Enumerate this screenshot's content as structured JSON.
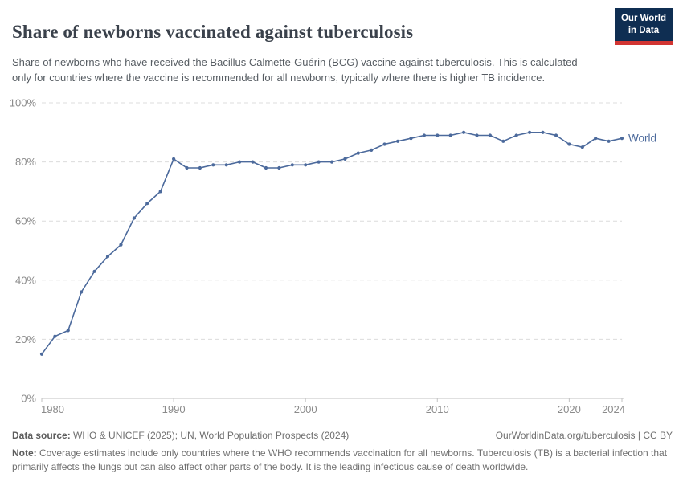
{
  "header": {
    "title": "Share of newborns vaccinated against tuberculosis",
    "subtitle": "Share of newborns who have received the Bacillus Calmette-Guérin (BCG) vaccine against tuberculosis. This is calculated only for countries where the vaccine is recommended for all newborns, typically where there is higher TB incidence.",
    "logo": {
      "line1": "Our World",
      "line2": "in Data"
    }
  },
  "colors": {
    "line": "#4c6a9c",
    "logo_bg": "#0f2e52",
    "logo_stripe": "#d23532",
    "grid": "#dcdcdc",
    "axis": "#c2c2c2",
    "tick_label": "#8b8b8b"
  },
  "chart_data": {
    "type": "line",
    "title": "Share of newborns vaccinated against tuberculosis",
    "xlabel": "",
    "ylabel": "",
    "xlim": [
      1980,
      2024
    ],
    "ylim": [
      0,
      100
    ],
    "xticks": [
      1980,
      1990,
      2000,
      2010,
      2020,
      2024
    ],
    "yticks": [
      0,
      20,
      40,
      60,
      80,
      100
    ],
    "ytick_suffix": "%",
    "grid": "horizontal-dashed",
    "legend": "end-of-line-label",
    "x": [
      1980,
      1981,
      1982,
      1983,
      1984,
      1985,
      1986,
      1987,
      1988,
      1989,
      1990,
      1991,
      1992,
      1993,
      1994,
      1995,
      1996,
      1997,
      1998,
      1999,
      2000,
      2001,
      2002,
      2003,
      2004,
      2005,
      2006,
      2007,
      2008,
      2009,
      2010,
      2011,
      2012,
      2013,
      2014,
      2015,
      2016,
      2017,
      2018,
      2019,
      2020,
      2021,
      2022,
      2023,
      2024
    ],
    "series": [
      {
        "name": "World",
        "color": "#4c6a9c",
        "values": [
          15,
          21,
          23,
          36,
          43,
          48,
          52,
          61,
          66,
          70,
          81,
          78,
          78,
          79,
          79,
          80,
          80,
          78,
          78,
          79,
          79,
          80,
          80,
          81,
          83,
          84,
          86,
          87,
          88,
          89,
          89,
          89,
          90,
          89,
          89,
          87,
          89,
          90,
          90,
          89,
          86,
          85,
          88,
          87,
          88
        ]
      }
    ]
  },
  "footer": {
    "datasource_label": "Data source:",
    "datasource_text": " WHO & UNICEF (2025); UN, World Population Prospects (2024)",
    "attribution": "OurWorldinData.org/tuberculosis | CC BY",
    "note_label": "Note:",
    "note_text": " Coverage estimates include only countries where the WHO recommends vaccination for all newborns. Tuberculosis (TB) is a bacterial infection that primarily affects the lungs but can also affect other parts of the body. It is the leading infectious cause of death worldwide."
  }
}
